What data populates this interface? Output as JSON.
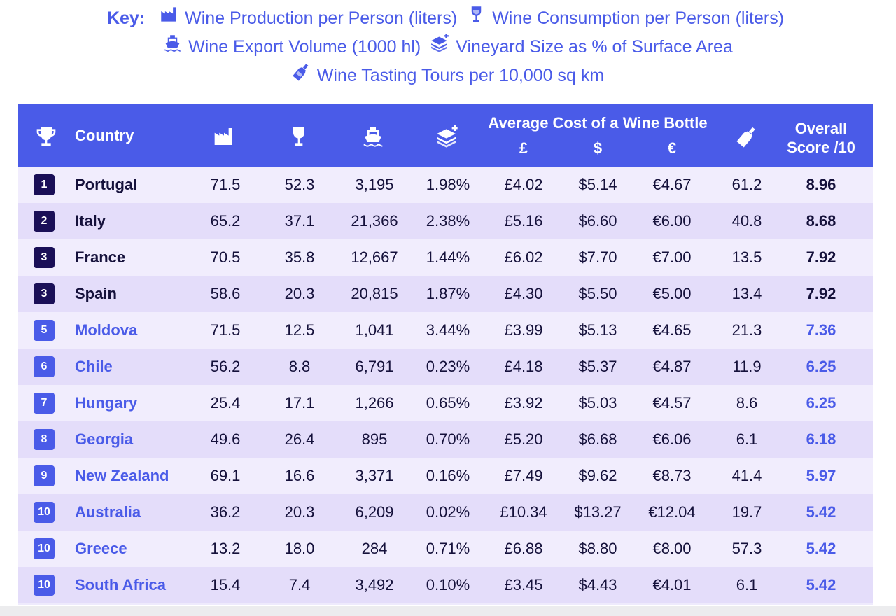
{
  "key": {
    "title": "Key:",
    "items": [
      {
        "icon": "factory-icon",
        "label": "Wine Production per Person (liters)"
      },
      {
        "icon": "wine-glass-icon",
        "label": "Wine Consumption per Person (liters)"
      },
      {
        "icon": "ship-icon",
        "label": "Wine Export Volume (1000 hl)"
      },
      {
        "icon": "layers-icon",
        "label": "Vineyard Size as % of Surface Area"
      },
      {
        "icon": "wine-bottle-icon",
        "label": "Wine Tasting Tours per 10,000 sq km"
      }
    ]
  },
  "header": {
    "rank_icon": "trophy-icon",
    "country": "Country",
    "production_icon": "factory-icon",
    "consumption_icon": "wine-glass-icon",
    "export_icon": "ship-icon",
    "vineyard_icon": "layers-icon",
    "cost_group": "Average Cost of a Wine Bottle",
    "gbp": "£",
    "usd": "$",
    "eur": "€",
    "tours_icon": "wine-bottle-icon",
    "score_line1": "Overall",
    "score_line2": "Score /10"
  },
  "colors": {
    "accent": "#4a5be8",
    "dark": "#1a0f57",
    "row_light": "#f1edfd",
    "row_dark": "#e4ddfa"
  },
  "chart_data": {
    "type": "table",
    "columns": [
      "Rank",
      "Country",
      "Wine Production per Person (liters)",
      "Wine Consumption per Person (liters)",
      "Wine Export Volume (1000 hl)",
      "Vineyard Size as % of Surface Area",
      "Average Cost of a Wine Bottle £",
      "Average Cost of a Wine Bottle $",
      "Average Cost of a Wine Bottle €",
      "Wine Tasting Tours per 10,000 sq km",
      "Overall Score /10"
    ],
    "rows": [
      {
        "rank": "1",
        "country": "Portugal",
        "production": "71.5",
        "consumption": "52.3",
        "export": "3,195",
        "vineyard": "1.98%",
        "gbp": "£4.02",
        "usd": "$5.14",
        "eur": "€4.67",
        "tours": "61.2",
        "score": "8.96",
        "tier": "top"
      },
      {
        "rank": "2",
        "country": "Italy",
        "production": "65.2",
        "consumption": "37.1",
        "export": "21,366",
        "vineyard": "2.38%",
        "gbp": "£5.16",
        "usd": "$6.60",
        "eur": "€6.00",
        "tours": "40.8",
        "score": "8.68",
        "tier": "top"
      },
      {
        "rank": "3",
        "country": "France",
        "production": "70.5",
        "consumption": "35.8",
        "export": "12,667",
        "vineyard": "1.44%",
        "gbp": "£6.02",
        "usd": "$7.70",
        "eur": "€7.00",
        "tours": "13.5",
        "score": "7.92",
        "tier": "top"
      },
      {
        "rank": "3",
        "country": "Spain",
        "production": "58.6",
        "consumption": "20.3",
        "export": "20,815",
        "vineyard": "1.87%",
        "gbp": "£4.30",
        "usd": "$5.50",
        "eur": "€5.00",
        "tours": "13.4",
        "score": "7.92",
        "tier": "top"
      },
      {
        "rank": "5",
        "country": "Moldova",
        "production": "71.5",
        "consumption": "12.5",
        "export": "1,041",
        "vineyard": "3.44%",
        "gbp": "£3.99",
        "usd": "$5.13",
        "eur": "€4.65",
        "tours": "21.3",
        "score": "7.36",
        "tier": "mid"
      },
      {
        "rank": "6",
        "country": "Chile",
        "production": "56.2",
        "consumption": "8.8",
        "export": "6,791",
        "vineyard": "0.23%",
        "gbp": "£4.18",
        "usd": "$5.37",
        "eur": "€4.87",
        "tours": "11.9",
        "score": "6.25",
        "tier": "mid"
      },
      {
        "rank": "7",
        "country": "Hungary",
        "production": "25.4",
        "consumption": "17.1",
        "export": "1,266",
        "vineyard": "0.65%",
        "gbp": "£3.92",
        "usd": "$5.03",
        "eur": "€4.57",
        "tours": "8.6",
        "score": "6.25",
        "tier": "mid"
      },
      {
        "rank": "8",
        "country": "Georgia",
        "production": "49.6",
        "consumption": "26.4",
        "export": "895",
        "vineyard": "0.70%",
        "gbp": "£5.20",
        "usd": "$6.68",
        "eur": "€6.06",
        "tours": "6.1",
        "score": "6.18",
        "tier": "mid"
      },
      {
        "rank": "9",
        "country": "New Zealand",
        "production": "69.1",
        "consumption": "16.6",
        "export": "3,371",
        "vineyard": "0.16%",
        "gbp": "£7.49",
        "usd": "$9.62",
        "eur": "€8.73",
        "tours": "41.4",
        "score": "5.97",
        "tier": "mid"
      },
      {
        "rank": "10",
        "country": "Australia",
        "production": "36.2",
        "consumption": "20.3",
        "export": "6,209",
        "vineyard": "0.02%",
        "gbp": "£10.34",
        "usd": "$13.27",
        "eur": "€12.04",
        "tours": "19.7",
        "score": "5.42",
        "tier": "mid"
      },
      {
        "rank": "10",
        "country": "Greece",
        "production": "13.2",
        "consumption": "18.0",
        "export": "284",
        "vineyard": "0.71%",
        "gbp": "£6.88",
        "usd": "$8.80",
        "eur": "€8.00",
        "tours": "57.3",
        "score": "5.42",
        "tier": "mid"
      },
      {
        "rank": "10",
        "country": "South Africa",
        "production": "15.4",
        "consumption": "7.4",
        "export": "3,492",
        "vineyard": "0.10%",
        "gbp": "£3.45",
        "usd": "$4.43",
        "eur": "€4.01",
        "tours": "6.1",
        "score": "5.42",
        "tier": "mid"
      }
    ]
  }
}
